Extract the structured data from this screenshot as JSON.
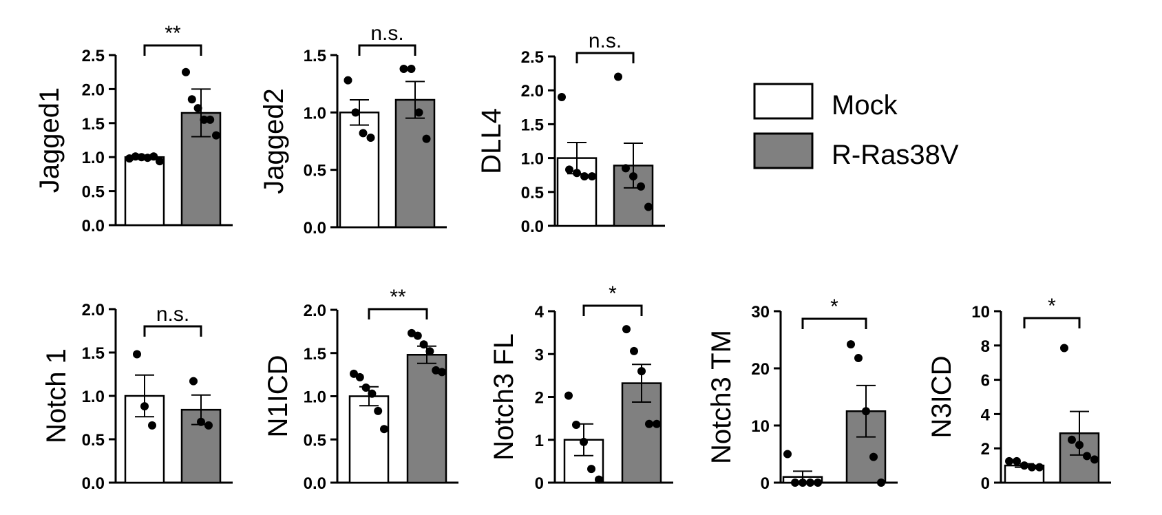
{
  "legend": {
    "items": [
      {
        "label": "Mock",
        "color": "#ffffff"
      },
      {
        "label": "R-Ras38V",
        "color": "#808080"
      }
    ]
  },
  "chart_data": [
    {
      "type": "bar",
      "ylabel": "Jagged1",
      "ylim": [
        0,
        2.5
      ],
      "yticks": [
        "0.0",
        "0.5",
        "1.0",
        "1.5",
        "2.0",
        "2.5"
      ],
      "tick_values": [
        0,
        0.5,
        1,
        1.5,
        2,
        2.5
      ],
      "significance": "**",
      "groups": [
        {
          "name": "Mock",
          "mean": 1.0,
          "sem": 0.02,
          "points": [
            0.98,
            1.01,
            1.0,
            0.99,
            1.01,
            0.94
          ]
        },
        {
          "name": "R-Ras38V",
          "mean": 1.65,
          "sem": 0.35,
          "points": [
            2.25,
            1.85,
            1.72,
            1.55,
            1.55,
            1.32
          ]
        }
      ]
    },
    {
      "type": "bar",
      "ylabel": "Jagged2",
      "ylim": [
        0,
        1.5
      ],
      "yticks": [
        "0.0",
        "0.5",
        "1.0",
        "1.5"
      ],
      "tick_values": [
        0,
        0.5,
        1,
        1.5
      ],
      "significance": "n.s.",
      "groups": [
        {
          "name": "Mock",
          "mean": 1.0,
          "sem": 0.11,
          "points": [
            1.28,
            1.0,
            0.82,
            0.78
          ]
        },
        {
          "name": "R-Ras38V",
          "mean": 1.11,
          "sem": 0.16,
          "points": [
            1.38,
            1.38,
            1.0,
            0.77
          ]
        }
      ]
    },
    {
      "type": "bar",
      "ylabel": "DLL4",
      "ylim": [
        0,
        2.5
      ],
      "yticks": [
        "0.0",
        "0.5",
        "1.0",
        "1.5",
        "2.0",
        "2.5"
      ],
      "tick_values": [
        0,
        0.5,
        1,
        1.5,
        2,
        2.5
      ],
      "significance": "n.s.",
      "groups": [
        {
          "name": "Mock",
          "mean": 1.0,
          "sem": 0.23,
          "points": [
            1.9,
            0.83,
            0.78,
            0.73,
            0.73
          ]
        },
        {
          "name": "R-Ras38V",
          "mean": 0.89,
          "sem": 0.33,
          "points": [
            2.2,
            0.85,
            0.73,
            0.58,
            0.28
          ]
        }
      ]
    },
    {
      "type": "bar",
      "ylabel": "Notch 1",
      "ylim": [
        0,
        2.0
      ],
      "yticks": [
        "0.0",
        "0.5",
        "1.0",
        "1.5",
        "2.0"
      ],
      "tick_values": [
        0,
        0.5,
        1,
        1.5,
        2
      ],
      "significance": "n.s.",
      "groups": [
        {
          "name": "Mock",
          "mean": 1.0,
          "sem": 0.24,
          "points": [
            1.48,
            0.88,
            0.66
          ]
        },
        {
          "name": "R-Ras38V",
          "mean": 0.84,
          "sem": 0.17,
          "points": [
            1.17,
            0.7,
            0.66
          ]
        }
      ]
    },
    {
      "type": "bar",
      "ylabel": "N1ICD",
      "ylim": [
        0,
        2.0
      ],
      "yticks": [
        "0.0",
        "0.5",
        "1.0",
        "1.5",
        "2.0"
      ],
      "tick_values": [
        0,
        0.5,
        1,
        1.5,
        2
      ],
      "significance": "**",
      "groups": [
        {
          "name": "Mock",
          "mean": 1.0,
          "sem": 0.11,
          "points": [
            1.26,
            1.22,
            1.1,
            1.03,
            0.83,
            0.62
          ]
        },
        {
          "name": "R-Ras38V",
          "mean": 1.48,
          "sem": 0.1,
          "points": [
            1.73,
            1.7,
            1.6,
            1.52,
            1.3,
            1.28
          ]
        }
      ]
    },
    {
      "type": "bar",
      "ylabel": "Notch3 FL",
      "ylim": [
        0,
        4
      ],
      "yticks": [
        "0",
        "1",
        "2",
        "3",
        "4"
      ],
      "tick_values": [
        0,
        1,
        2,
        3,
        4
      ],
      "significance": "*",
      "groups": [
        {
          "name": "Mock",
          "mean": 1.0,
          "sem": 0.37,
          "points": [
            2.03,
            1.35,
            0.95,
            0.32,
            0.07
          ]
        },
        {
          "name": "R-Ras38V",
          "mean": 2.32,
          "sem": 0.44,
          "points": [
            3.58,
            3.07,
            2.6,
            1.37,
            1.37
          ]
        }
      ]
    },
    {
      "type": "bar",
      "ylabel": "Notch3 TM",
      "ylim": [
        0,
        30
      ],
      "yticks": [
        "0",
        "10",
        "20",
        "30"
      ],
      "tick_values": [
        0,
        10,
        20,
        30
      ],
      "significance": "*",
      "groups": [
        {
          "name": "Mock",
          "mean": 1.0,
          "sem": 1.0,
          "points": [
            5.0,
            0.0,
            0.0,
            0.0,
            0.0
          ]
        },
        {
          "name": "R-Ras38V",
          "mean": 12.5,
          "sem": 4.5,
          "points": [
            24.2,
            21.8,
            12.5,
            4.5,
            0.0
          ]
        }
      ]
    },
    {
      "type": "bar",
      "ylabel": "N3ICD",
      "ylim": [
        0,
        10
      ],
      "yticks": [
        "0",
        "2",
        "4",
        "6",
        "8",
        "10"
      ],
      "tick_values": [
        0,
        2,
        4,
        6,
        8,
        10
      ],
      "significance": "*",
      "groups": [
        {
          "name": "Mock",
          "mean": 1.0,
          "sem": 0.1,
          "points": [
            1.25,
            1.25,
            1.0,
            0.9,
            0.9
          ]
        },
        {
          "name": "R-Ras38V",
          "mean": 2.88,
          "sem": 1.27,
          "points": [
            7.85,
            2.5,
            2.2,
            1.55,
            1.35
          ]
        }
      ]
    }
  ]
}
